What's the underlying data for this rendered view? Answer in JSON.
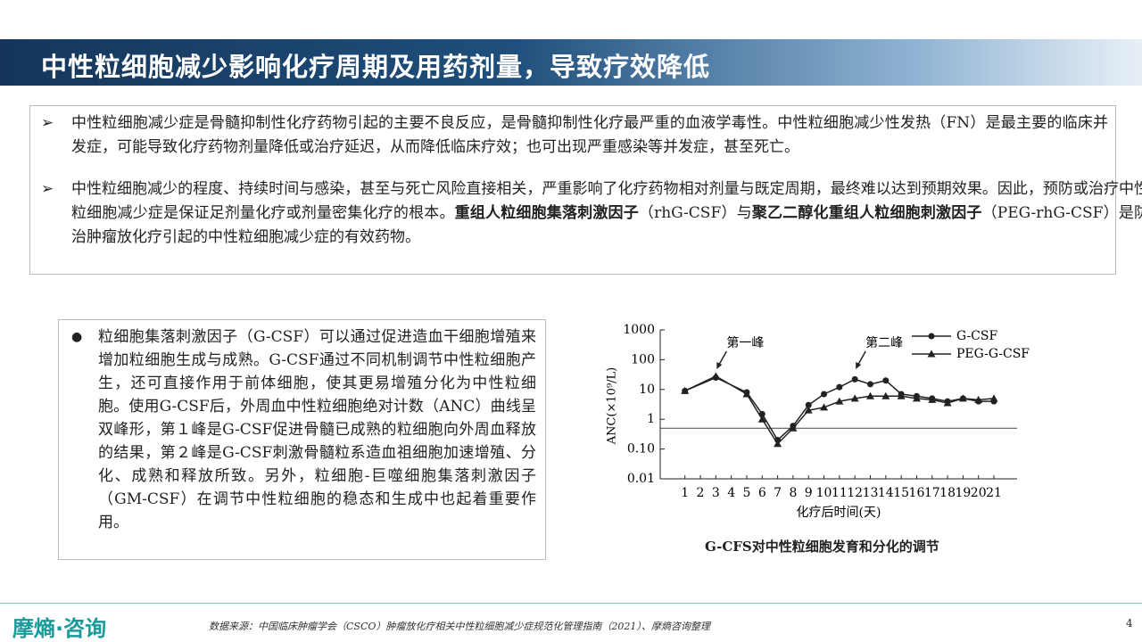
{
  "header": {
    "title": "中性粒细胞减少影响化疗周期及用药剂量，导致疗效降低"
  },
  "bullets": [
    {
      "runs": [
        "中性粒细胞减少症是骨髓抑制性化疗药物引起的主要不良反应，是骨髓抑制性化疗最严重的血液学毒性。中性粒细胞减少性发热（FN）是最主要的临床并发症，可能导致化疗药物剂量降低或治疗延迟，从而降低临床疗效；也可出现严重感染等并发症，甚至死亡。"
      ]
    },
    {
      "runs": [
        "中性粒细胞减少的程度、持续时间与感染，甚至与死亡风险直接相关，严重影响了化疗药物相对剂量与既定周期，最终难以达到预期效果。因此，预防或治疗中性粒细胞减少症是保证足剂量化疗或剂量密集化疗的根本。",
        "重组人粒细胞集落刺激因子",
        "（rhG-CSF）与",
        "聚乙二醇化重组人粒细胞刺激因子",
        "（PEG-rhG-CSF）是防治肿瘤放化疗引起的中性粒细胞减少症的有效药物。"
      ]
    }
  ],
  "side_note": "粒细胞集落刺激因子（G-CSF）可以通过促进造血干细胞增殖来增加粒细胞生成与成熟。G-CSF通过不同机制调节中性粒细胞产生，还可直接作用于前体细胞，使其更易增殖分化为中性粒细胞。使用G-CSF后，外周血中性粒细胞绝对计数（ANC）曲线呈双峰形，第１峰是G-CSF促进骨髓已成熟的粒细胞向外周血释放的结果，第２峰是G-CSF刺激骨髓粒系造血祖细胞加速增殖、分化、成熟和释放所致。另外，粒细胞-巨噬细胞集落刺激因子（GM-CSF）在调节中性粒细胞的稳态和生成中也起着重要作用。",
  "chart_data": {
    "type": "line",
    "caption": "G-CFS对中性粒细胞发育和分化的调节",
    "x_label": "化疗后时间(天)",
    "y_label": "ANC(×10⁹/L)",
    "x": [
      1,
      3,
      5,
      6,
      7,
      8,
      9,
      10,
      11,
      12,
      13,
      14,
      15,
      16,
      17,
      18,
      19,
      20,
      21
    ],
    "xlim": [
      -0.6,
      22.5
    ],
    "xticks": [
      1,
      2,
      3,
      4,
      5,
      6,
      7,
      8,
      9,
      10,
      11,
      12,
      13,
      14,
      15,
      16,
      17,
      18,
      19,
      20,
      21
    ],
    "ylim": [
      0.01,
      1000
    ],
    "log_scale": true,
    "yticks": [
      0.01,
      {
        "value": 0.1,
        "label": "0.10"
      },
      1,
      10,
      100,
      1000
    ],
    "reference_line": 0.5,
    "series": [
      {
        "name": "G-CSF",
        "color": "#222222",
        "marker": "circle",
        "values": [
          9,
          25,
          8,
          1.5,
          0.2,
          0.6,
          3,
          7,
          12,
          22,
          15,
          20,
          7,
          6,
          5,
          4,
          5,
          4,
          4
        ]
      },
      {
        "name": "PEG-G-CSF",
        "color": "#222222",
        "marker": "triangle",
        "values": [
          9,
          28,
          7,
          1,
          0.15,
          0.5,
          2,
          2.5,
          4,
          5,
          6,
          6,
          6,
          5,
          4.5,
          3.5,
          5,
          4.5,
          5
        ]
      }
    ],
    "annotations": [
      {
        "text": "第一峰",
        "x": 3
      },
      {
        "text": "第二峰",
        "x": 12
      }
    ]
  },
  "footer": {
    "logo": "摩熵·咨询",
    "source": "数据来源：中国临床肿瘤学会（CSCO）肿瘤放化疗相关中性粒细胞减少症规范化管理指南（2021）、摩熵咨询整理",
    "page": "4"
  }
}
